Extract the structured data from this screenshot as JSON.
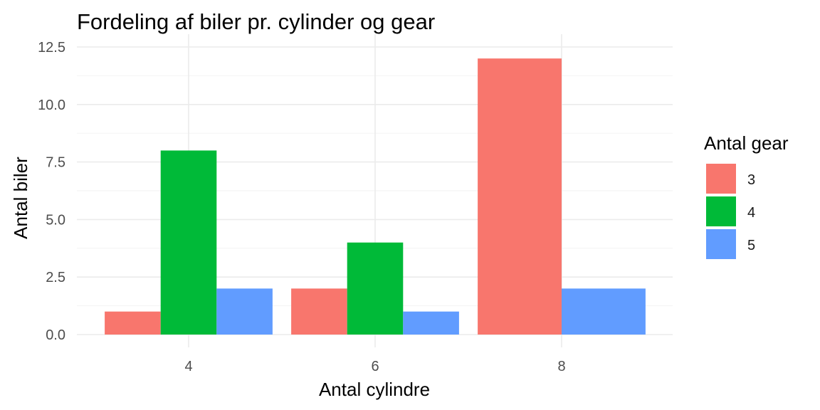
{
  "chart_data": {
    "type": "bar",
    "title": "Fordeling af biler pr. cylinder og gear",
    "xlabel": "Antal cylindre",
    "ylabel": "Antal biler",
    "categories": [
      "4",
      "6",
      "8"
    ],
    "series": [
      {
        "name": "3",
        "color": "#F8766D",
        "values": [
          1,
          2,
          12
        ]
      },
      {
        "name": "4",
        "color": "#00BA38",
        "values": [
          8,
          4,
          null
        ]
      },
      {
        "name": "5",
        "color": "#619CFF",
        "values": [
          2,
          1,
          2
        ]
      }
    ],
    "ylim": [
      0,
      12.5
    ],
    "yticks": [
      "0.0",
      "2.5",
      "5.0",
      "7.5",
      "10.0",
      "12.5"
    ],
    "grid": true,
    "legend": {
      "title": "Antal gear",
      "placement": "right"
    }
  }
}
